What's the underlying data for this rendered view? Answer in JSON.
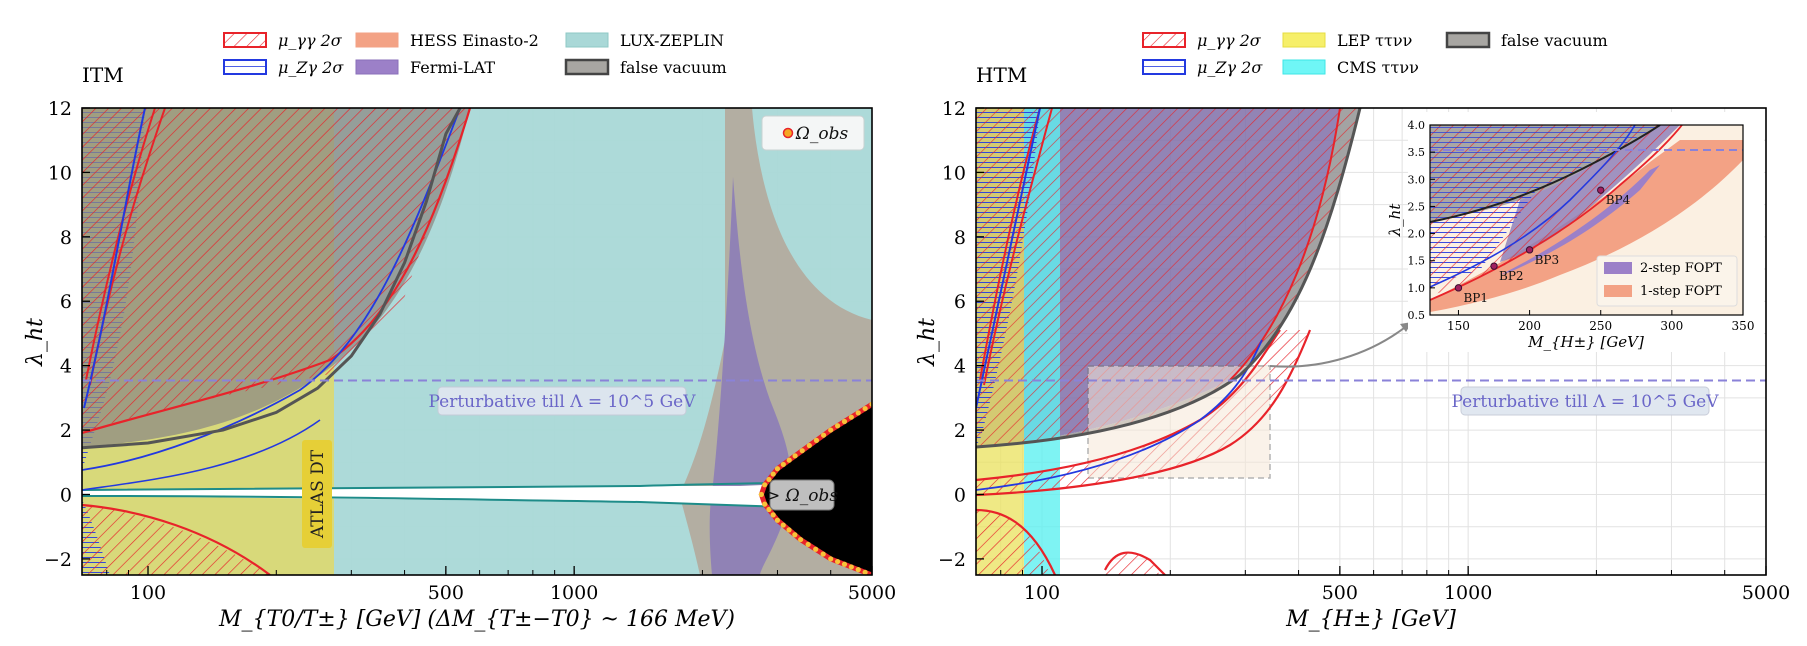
{
  "chart_data": [
    {
      "type": "area",
      "title": "ITM",
      "xlabel": "M_{T0/T±} [GeV]  (ΔM_{T±−T0} ~ 166 MeV)",
      "ylabel": "λ_ht",
      "xscale": "log",
      "xlim": [
        70,
        5000
      ],
      "ylim": [
        -2.5,
        12
      ],
      "xticks": [
        100,
        500,
        1000,
        5000
      ],
      "xtick_labels": [
        "100",
        "500",
        "1000",
        "5000"
      ],
      "yticks": [
        -2,
        0,
        2,
        4,
        6,
        8,
        10,
        12
      ],
      "ytick_labels": [
        "−2",
        "0",
        "2",
        "4",
        "6",
        "8",
        "10",
        "12"
      ],
      "grid": true,
      "legend_position": "top-outside",
      "legend": [
        {
          "label": "μ_γγ 2σ",
          "style": "red-hatch"
        },
        {
          "label": "μ_Zγ 2σ",
          "style": "blue-hatch"
        },
        {
          "label": "HESS Einasto-2",
          "style": "salmon"
        },
        {
          "label": "Fermi-LAT",
          "style": "purple"
        },
        {
          "label": "LUX-ZEPLIN",
          "style": "teal"
        },
        {
          "label": "false vacuum",
          "style": "gray"
        }
      ],
      "inner_legend": {
        "label": "Ω_obs",
        "position": "top-right"
      },
      "annotations": [
        {
          "text": "Perturbative till Λ = 10^5 GeV",
          "x": 900,
          "y": 2.9
        },
        {
          "text": "ATLAS DT",
          "x": 242,
          "y": 0.5,
          "rotation": -90
        },
        {
          "text": "> Ω_obs",
          "x": 4000,
          "y": 0
        }
      ],
      "perturbative_limit_y": 3.54,
      "regions": {
        "atlas_dt_x_max": 270,
        "lux_zeplin_x_range": [
          270,
          5000
        ],
        "false_vacuum_boundary": {
          "x": [
            70,
            100,
            150,
            200,
            250,
            300,
            350,
            400,
            450,
            500,
            540
          ],
          "y": [
            1.45,
            1.6,
            2.0,
            2.55,
            3.3,
            4.3,
            5.6,
            7.2,
            9.1,
            11.2,
            12
          ]
        },
        "relic_density_boundary": {
          "x": [
            5000,
            4000,
            3300,
            3000,
            2800,
            2750,
            2800,
            3000,
            3400,
            4000,
            5000
          ],
          "y": [
            2.8,
            2.0,
            1.2,
            0.8,
            0.3,
            0.0,
            -0.3,
            -0.8,
            -1.4,
            -2.0,
            -2.5
          ]
        }
      }
    },
    {
      "type": "area",
      "title": "HTM",
      "xlabel": "M_{H±} [GeV]",
      "ylabel": "λ_ht",
      "xscale": "log",
      "xlim": [
        70,
        5000
      ],
      "ylim": [
        -2.5,
        12
      ],
      "xticks": [
        100,
        500,
        1000,
        5000
      ],
      "xtick_labels": [
        "100",
        "500",
        "1000",
        "5000"
      ],
      "yticks": [
        -2,
        0,
        2,
        4,
        6,
        8,
        10,
        12
      ],
      "ytick_labels": [
        "−2",
        "0",
        "2",
        "4",
        "6",
        "8",
        "10",
        "12"
      ],
      "grid": true,
      "legend_position": "top-outside",
      "legend": [
        {
          "label": "μ_γγ 2σ",
          "style": "red-hatch"
        },
        {
          "label": "μ_Zγ 2σ",
          "style": "blue-hatch"
        },
        {
          "label": "LEP ττνν",
          "style": "yellow"
        },
        {
          "label": "CMS ττνν",
          "style": "cyan"
        },
        {
          "label": "false vacuum",
          "style": "gray"
        }
      ],
      "annotations": [
        {
          "text": "Perturbative till Λ = 10^5 GeV",
          "x": 2000,
          "y": 2.9
        }
      ],
      "perturbative_limit_y": 3.54,
      "regions": {
        "lep_x_max": 90,
        "cms_x_range": [
          90,
          110
        ],
        "zoom_box": {
          "x": [
            130,
            350
          ],
          "y": [
            0.5,
            4.0
          ]
        }
      },
      "inset": {
        "type": "area",
        "xlabel": "M_{H±} [GeV]",
        "ylabel": "λ_ht",
        "xlim": [
          130,
          350
        ],
        "ylim": [
          0.5,
          4.0
        ],
        "xticks": [
          150,
          200,
          250,
          300,
          350
        ],
        "xtick_labels": [
          "150",
          "200",
          "250",
          "300",
          "350"
        ],
        "yticks": [
          0.5,
          1.0,
          1.5,
          2.0,
          2.5,
          3.0,
          3.5,
          4.0
        ],
        "ytick_labels": [
          "0.5",
          "1.0",
          "1.5",
          "2.0",
          "2.5",
          "3.0",
          "3.5",
          "4.0"
        ],
        "legend": [
          {
            "label": "2-step FOPT",
            "color": "#9c80c8"
          },
          {
            "label": "1-step FOPT",
            "color": "#f3a285"
          }
        ],
        "legend_position": "lower-right",
        "points": [
          {
            "label": "BP1",
            "x": 150,
            "y": 1.0
          },
          {
            "label": "BP2",
            "x": 175,
            "y": 1.4
          },
          {
            "label": "BP3",
            "x": 200,
            "y": 1.7
          },
          {
            "label": "BP4",
            "x": 250,
            "y": 2.8
          }
        ]
      }
    }
  ]
}
